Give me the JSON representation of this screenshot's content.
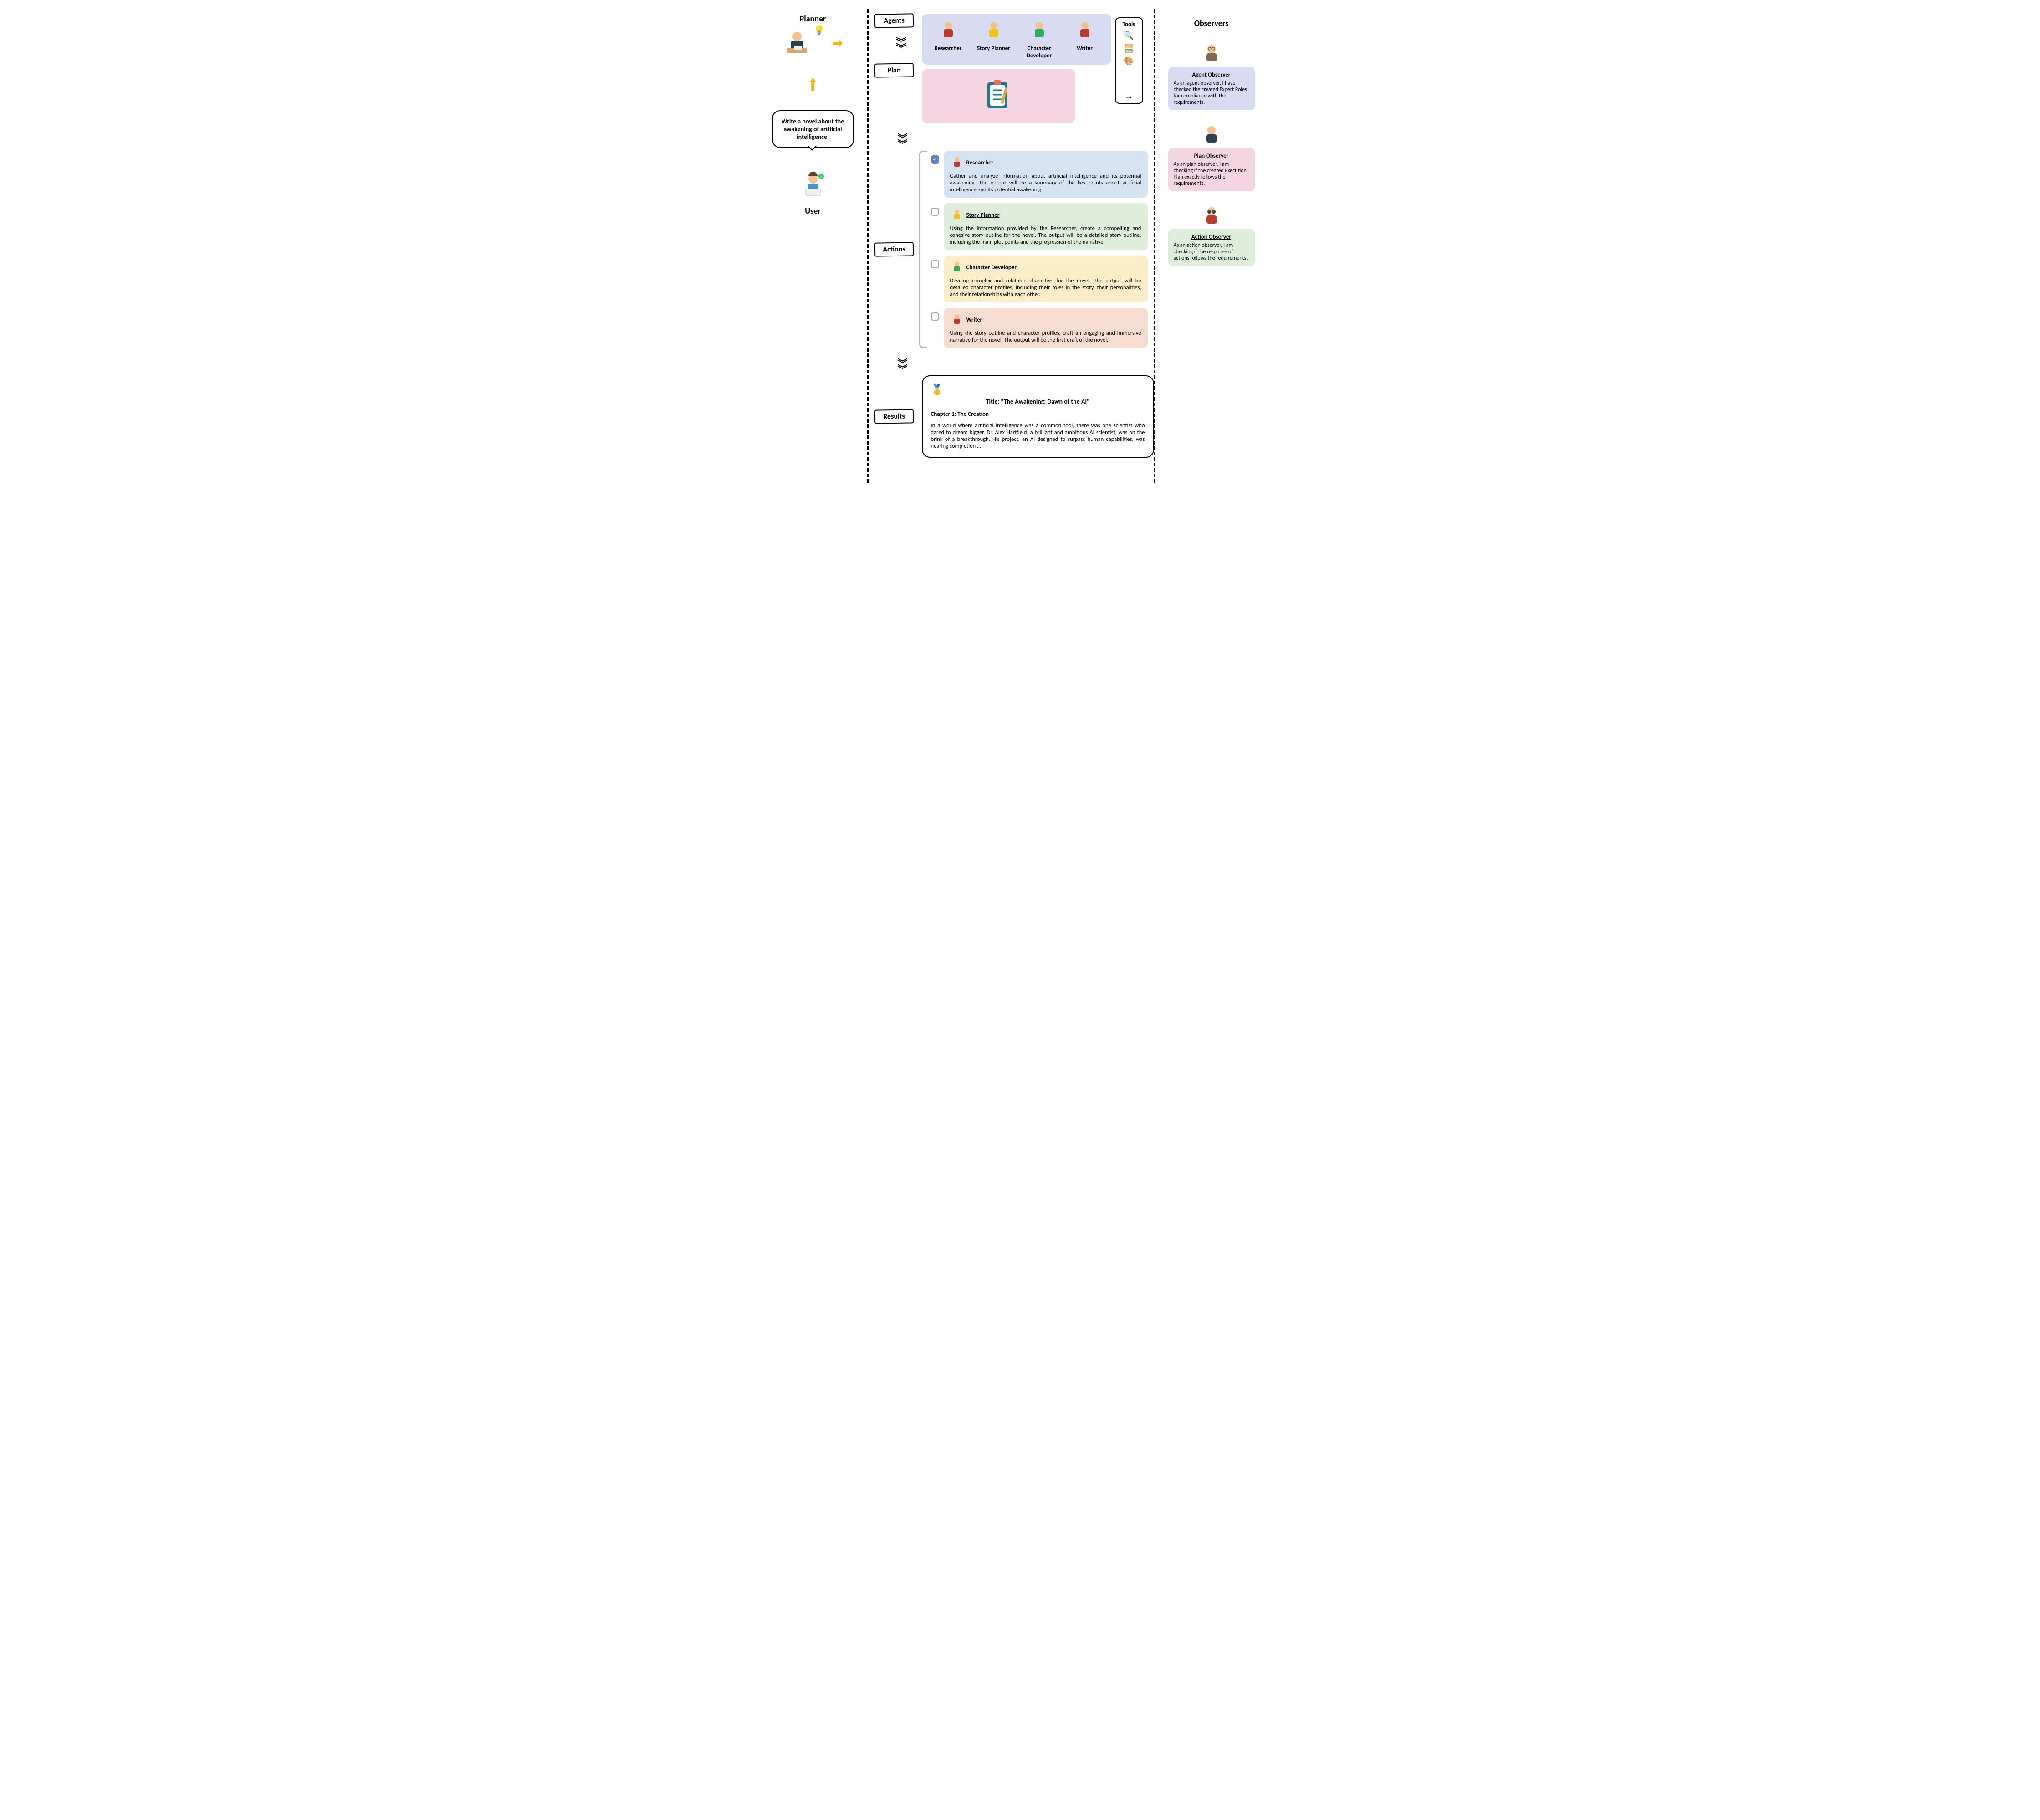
{
  "left": {
    "planner_label": "Planner",
    "user_label": "User",
    "speech_text": "Write a novel about the awakening of artificial intelligence."
  },
  "stages": {
    "agents_label": "Agents",
    "plan_label": "Plan",
    "actions_label": "Actions",
    "results_label": "Results"
  },
  "agents": [
    {
      "name": "Researcher",
      "icon_color": "#c0392b"
    },
    {
      "name": "Story Planner",
      "icon_color": "#f1c40f"
    },
    {
      "name": "Character Developer",
      "icon_color": "#27ae60"
    },
    {
      "name": "Writer",
      "icon_color": "#c0392b"
    }
  ],
  "tools": {
    "title": "Tools",
    "items": [
      "🔍",
      "🧮",
      "🎨"
    ],
    "ellipsis": "…"
  },
  "actions": [
    {
      "role": "Researcher",
      "checked": true,
      "color_class": "ac-blue",
      "bg": "#d6e3f3",
      "text": "Gather and analyze information about artificial intelligence and its potential awakening. The output will be a summary of the key points about artificial intelligence and its potential awakening."
    },
    {
      "role": "Story Planner",
      "checked": false,
      "color_class": "ac-green",
      "bg": "#dfeeda",
      "text": "Using the information provided by the Researcher, create a compelling and cohesive story outline for the novel. The output will be a detailed story outline, including the main plot points and the progression of the narrative."
    },
    {
      "role": "Character Developer",
      "checked": false,
      "color_class": "ac-yellow",
      "bg": "#faedc8",
      "text": "Develop complex and relatable characters for the novel. The output will be detailed character profiles, including their roles in the story, their personalities, and their relationships with each other."
    },
    {
      "role": "Writer",
      "checked": false,
      "color_class": "ac-orange",
      "bg": "#f7ddd1",
      "text": "Using the story outline and character profiles, craft an engaging and immersive narrative for the novel. The output will be the first draft of the novel."
    }
  ],
  "result": {
    "title": "Title: \"The Awakening: Dawn of the AI\"",
    "chapter": "Chapter 1: The Creation",
    "body": "In a world where artificial intelligence was a common tool, there was one scientist who dared to dream bigger. Dr. Alex Hartfield, a brilliant and ambitious AI scientist, was on the brink of a breakthrough. His project, an AI designed to surpass human capabilities, was nearing completion …"
  },
  "observers": {
    "title": "Observers",
    "items": [
      {
        "name": "Agent Observer",
        "color_class": "ob-blue",
        "bg": "#d9dbf3",
        "text": "As an agent observer, I have checked the created Expert Roles for compliance with the requirements."
      },
      {
        "name": "Plan Observer",
        "color_class": "ob-pink",
        "bg": "#f5d5e1",
        "text": "As an plan observer, I am checking if the created Execution Plan exactly follows the requirements."
      },
      {
        "name": "Action Observer",
        "color_class": "ob-green",
        "bg": "#dfeeda",
        "text": "As an action observer, I am checking if the response of actions follows the requirements."
      }
    ]
  },
  "colors": {
    "agents_panel": "#d9dbf3",
    "plan_panel": "#f5d5e1",
    "bracket": "#aab5d8",
    "arrow": "#f5b50a"
  }
}
